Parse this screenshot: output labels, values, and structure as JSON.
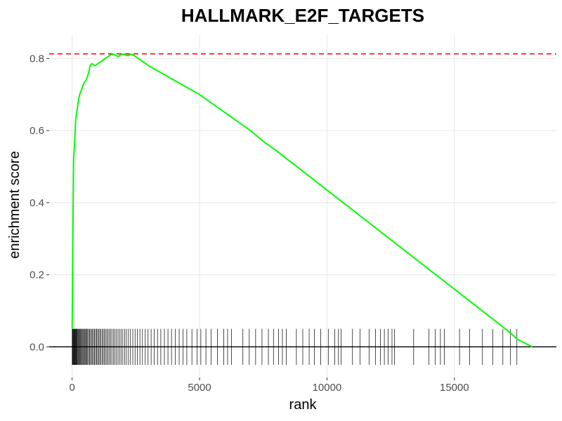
{
  "chart_data": {
    "type": "line",
    "title": "HALLMARK_E2F_TARGETS",
    "xlabel": "rank",
    "ylabel": "enrichment score",
    "xlim": [
      -900,
      19000
    ],
    "ylim": [
      -0.085,
      0.865
    ],
    "x_ticks": [
      0,
      5000,
      10000,
      15000
    ],
    "x_tick_labels": [
      "0",
      "5000",
      "10000",
      "15000"
    ],
    "y_ticks": [
      0.0,
      0.2,
      0.4,
      0.6,
      0.8
    ],
    "y_tick_labels": [
      "0.0",
      "0.2",
      "0.4",
      "0.6",
      "0.8"
    ],
    "grid": true,
    "max_enrichment_score": 0.813,
    "colors": {
      "curve": "#00ff00",
      "max_line": "#ff0000",
      "zero_line": "#000000",
      "hits": "#000000",
      "grid": "#ebebeb"
    },
    "series": [
      {
        "x": [
          0,
          30,
          60,
          100,
          140,
          180,
          220,
          260,
          300,
          350,
          400,
          450,
          500,
          550,
          600,
          650,
          700,
          750,
          800,
          900,
          1000,
          1100,
          1200,
          1300,
          1400,
          1500,
          1600,
          1700,
          1800,
          1900,
          2000,
          2100,
          2200,
          2300,
          2400,
          2500,
          2600,
          2800,
          3000,
          3500,
          4000,
          4500,
          5000,
          5500,
          6000,
          6500,
          7000,
          7500,
          8000,
          9000,
          10000,
          11000,
          12000,
          13000,
          14000,
          15000,
          16000,
          17000,
          17500,
          18050
        ],
        "y": [
          0.05,
          0.3,
          0.52,
          0.57,
          0.63,
          0.65,
          0.67,
          0.69,
          0.7,
          0.71,
          0.72,
          0.73,
          0.735,
          0.74,
          0.75,
          0.76,
          0.78,
          0.785,
          0.785,
          0.78,
          0.785,
          0.79,
          0.795,
          0.8,
          0.805,
          0.81,
          0.812,
          0.81,
          0.805,
          0.81,
          0.813,
          0.81,
          0.808,
          0.812,
          0.81,
          0.805,
          0.8,
          0.79,
          0.78,
          0.76,
          0.74,
          0.72,
          0.7,
          0.675,
          0.65,
          0.625,
          0.6,
          0.57,
          0.545,
          0.49,
          0.435,
          0.38,
          0.325,
          0.27,
          0.215,
          0.16,
          0.105,
          0.05,
          0.02,
          0.0
        ]
      }
    ],
    "hits": [
      5,
      20,
      35,
      50,
      70,
      90,
      110,
      130,
      150,
      170,
      195,
      220,
      245,
      270,
      300,
      330,
      360,
      390,
      420,
      450,
      480,
      510,
      540,
      575,
      610,
      645,
      680,
      720,
      760,
      800,
      840,
      880,
      920,
      960,
      1000,
      1040,
      1085,
      1130,
      1175,
      1220,
      1265,
      1310,
      1360,
      1410,
      1460,
      1510,
      1560,
      1620,
      1680,
      1740,
      1800,
      1860,
      1920,
      1990,
      2060,
      2130,
      2210,
      2290,
      2380,
      2470,
      2560,
      2660,
      2760,
      2870,
      2980,
      3100,
      3220,
      3350,
      3480,
      3620,
      3760,
      3900,
      4050,
      4200,
      4350,
      4500,
      4700,
      4900,
      5050,
      5250,
      5450,
      5700,
      5950,
      6100,
      6250,
      6700,
      6950,
      7200,
      7450,
      7700,
      7900,
      8100,
      8250,
      8400,
      8800,
      9050,
      9300,
      9500,
      9750,
      10050,
      10300,
      10450,
      10550,
      11000,
      11300,
      11650,
      11900,
      12100,
      12250,
      12400,
      12550,
      12650,
      13400,
      14000,
      14250,
      14450,
      14600,
      15200,
      15600,
      16100,
      16500,
      16900,
      17200,
      17450
    ]
  }
}
